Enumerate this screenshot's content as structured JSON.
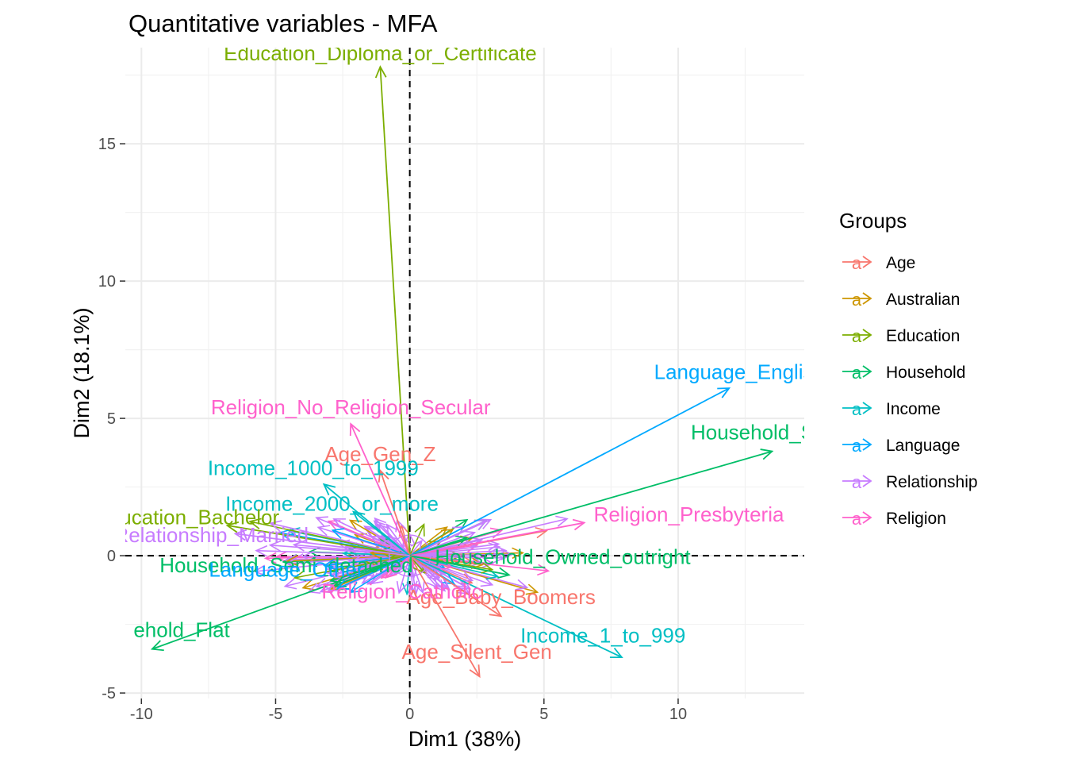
{
  "chart_data": {
    "type": "scatter",
    "subtype": "variable-factor-map",
    "title": "Quantitative variables - MFA",
    "xlabel": "Dim1 (38%)",
    "ylabel": "Dim2 (18.1%)",
    "xlim": [
      -10.6,
      14.7
    ],
    "ylim": [
      -5.2,
      18.5
    ],
    "x_ticks": [
      -10,
      -5,
      0,
      5,
      10
    ],
    "x_tick_labels": [
      "-10",
      "-5",
      "0",
      "5",
      "10"
    ],
    "y_ticks": [
      -5,
      0,
      5,
      10,
      15
    ],
    "y_tick_labels": [
      "-5",
      "0",
      "5",
      "10",
      "15"
    ],
    "grid": true,
    "reference_lines": {
      "x": 0,
      "y": 0,
      "style": "dashed"
    },
    "legend": {
      "title": "Groups",
      "placement": "right",
      "key_glyph": "a",
      "entries": [
        {
          "name": "Age",
          "color": "#F8766D"
        },
        {
          "name": "Australian",
          "color": "#CD9600"
        },
        {
          "name": "Education",
          "color": "#7CAE00"
        },
        {
          "name": "Household",
          "color": "#00BE67"
        },
        {
          "name": "Income",
          "color": "#00BFC4"
        },
        {
          "name": "Language",
          "color": "#00A9FF"
        },
        {
          "name": "Relationship",
          "color": "#C77CFF"
        },
        {
          "name": "Religion",
          "color": "#FF61CC"
        }
      ]
    },
    "series": [
      {
        "name": "Education_Diploma_or_Certificate",
        "group": "Education",
        "x": -1.1,
        "y": 17.8,
        "lx": -1.1,
        "ly": 18.3
      },
      {
        "name": "Language_English_",
        "group": "Language",
        "x": 11.9,
        "y": 6.1,
        "lx": 12.5,
        "ly": 6.7
      },
      {
        "name": "Household_Sta",
        "group": "Household",
        "x": 13.5,
        "y": 3.8,
        "lx": 13.1,
        "ly": 4.5
      },
      {
        "name": "Religion_No_Religion_Secular",
        "group": "Religion",
        "x": -2.2,
        "y": 4.8,
        "lx": -2.2,
        "ly": 5.4
      },
      {
        "name": "Age_Gen_Z",
        "group": "Age",
        "x": -1.1,
        "y": 3.1,
        "lx": -1.1,
        "ly": 3.7
      },
      {
        "name": "Income_1000_to_1999",
        "group": "Income",
        "x": -3.2,
        "y": 2.6,
        "lx": -3.6,
        "ly": 3.2
      },
      {
        "name": "Income_2000_or_more",
        "group": "Income",
        "x": -2.1,
        "y": 1.6,
        "lx": -2.9,
        "ly": 1.9
      },
      {
        "name": "Religion_Presbyteria",
        "group": "Religion",
        "x": 6.5,
        "y": 1.2,
        "lx": 10.4,
        "ly": 1.5
      },
      {
        "name": "Income_1_to_999",
        "group": "Income",
        "x": 7.9,
        "y": -3.7,
        "lx": 7.2,
        "ly": -2.9
      },
      {
        "name": "Age_Baby_Boomers",
        "group": "Age",
        "x": 3.4,
        "y": -2.2,
        "lx": 3.4,
        "ly": -1.5
      },
      {
        "name": "Age_Silent_Gen",
        "group": "Age",
        "x": 2.6,
        "y": -4.4,
        "lx": 2.5,
        "ly": -3.5
      },
      {
        "name": "Religion_Catholic",
        "group": "Religion",
        "x": -0.9,
        "y": -0.8,
        "lx": -0.3,
        "ly": -1.3
      },
      {
        "name": "Household_Owned_outright",
        "group": "Household",
        "x": 3.7,
        "y": -0.7,
        "lx": 5.7,
        "ly": -0.04
      },
      {
        "name": "ehold_Flat",
        "group": "Household",
        "x": -9.6,
        "y": -3.4,
        "lx": -8.5,
        "ly": -2.7
      },
      {
        "name": "Education_Bachelor",
        "group": "Education",
        "x": -6.8,
        "y": 1.1,
        "lx": -8.3,
        "ly": 1.4
      },
      {
        "name": "Household_Semi_detached",
        "group": "Household",
        "x": -2.8,
        "y": -1.1,
        "lx": -4.6,
        "ly": -0.35
      },
      {
        "name": "Language_Other",
        "group": "Language",
        "x": -2.7,
        "y": -1.2,
        "lx": -4.6,
        "ly": -0.5
      },
      {
        "name": "Relationship_Married",
        "group": "Relationship",
        "x": -6.5,
        "y": 0.8,
        "lx": -7.4,
        "ly": 0.75
      }
    ]
  }
}
